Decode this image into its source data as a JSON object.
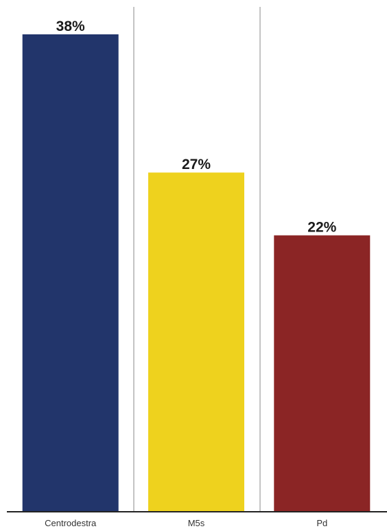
{
  "chart_data": {
    "type": "bar",
    "categories": [
      "Centrodestra",
      "M5s",
      "Pd"
    ],
    "values": [
      38,
      27,
      22
    ],
    "value_labels": [
      "38%",
      "27%",
      "22%"
    ],
    "colors": [
      "#22356b",
      "#eed21e",
      "#8b2525"
    ],
    "title": "",
    "xlabel": "",
    "ylabel": "",
    "ylim": [
      0,
      40
    ],
    "grid": false,
    "legend": "none"
  }
}
